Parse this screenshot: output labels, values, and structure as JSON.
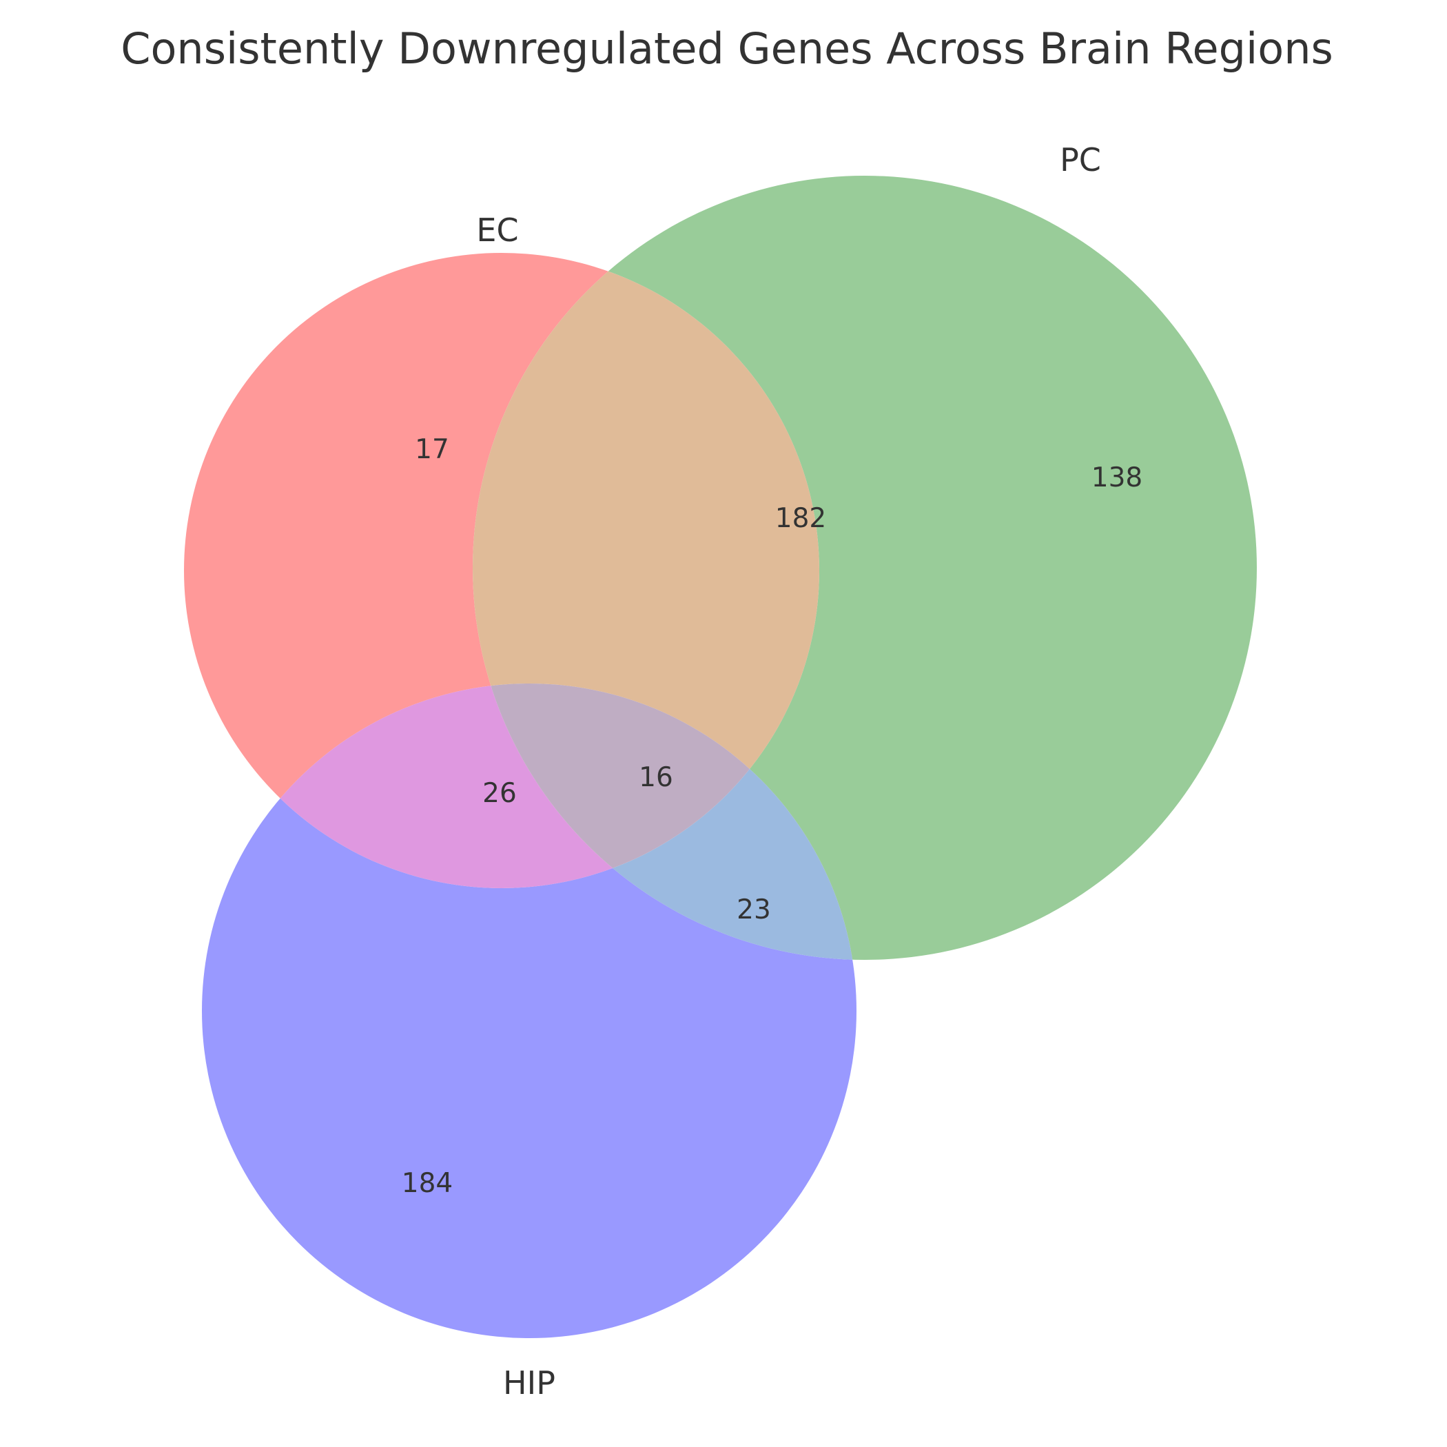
{
  "title": "Consistently Downregulated Genes Across Brain Regions",
  "sets": [
    {
      "key": "EC",
      "label": "EC",
      "color": "#ff9999"
    },
    {
      "key": "PC",
      "label": "PC",
      "color": "#99cc99"
    },
    {
      "key": "HIP",
      "label": "HIP",
      "color": "#9999ff"
    }
  ],
  "regions": {
    "ec_only": {
      "label": "17",
      "color": "#ff9999"
    },
    "pc_only": {
      "label": "138",
      "color": "#99cc99"
    },
    "hip_only": {
      "label": "184",
      "color": "#9999ff"
    },
    "ec_pc": {
      "label": "182",
      "color": "#e0bb98"
    },
    "ec_hip": {
      "label": "26",
      "color": "#df98e0"
    },
    "pc_hip": {
      "label": "23",
      "color": "#9bbae0"
    },
    "ec_pc_hip": {
      "label": "16",
      "color": "#bfadc3"
    }
  }
}
